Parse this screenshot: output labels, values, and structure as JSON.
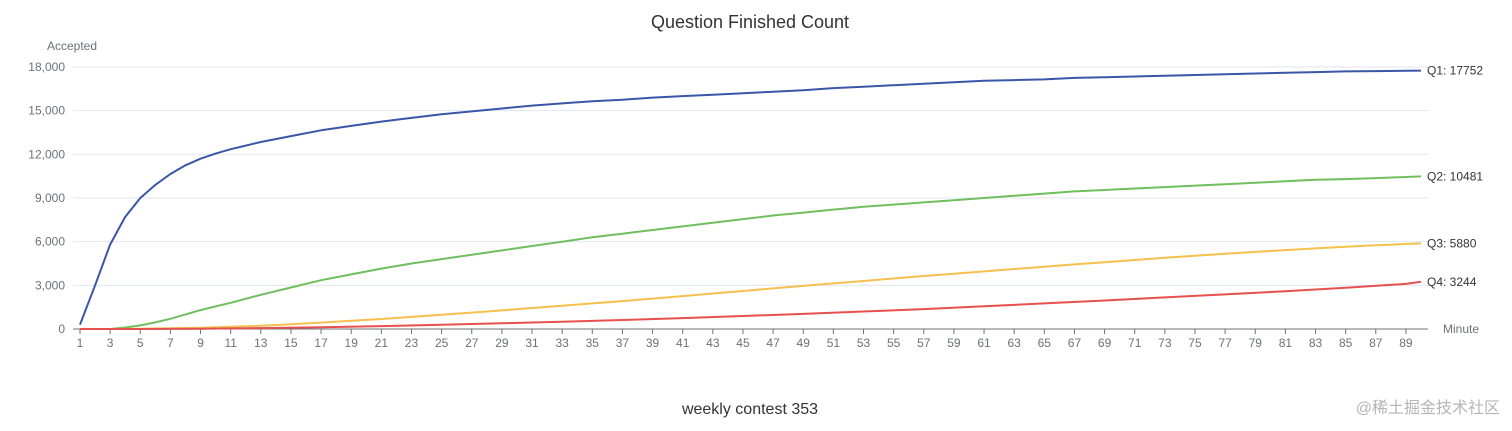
{
  "chart_data": {
    "type": "line",
    "title": "Question Finished Count",
    "subtitle": "weekly contest 353",
    "xlabel": "Minute",
    "ylabel": "Accepted",
    "ylim": [
      0,
      18000
    ],
    "yticks": [
      0,
      3000,
      6000,
      9000,
      12000,
      15000,
      18000
    ],
    "ytick_labels": [
      "0",
      "3,000",
      "6,000",
      "9,000",
      "12,000",
      "15,000",
      "18,000"
    ],
    "xlim": [
      1,
      90
    ],
    "xtick_labels": [
      "1",
      "3",
      "5",
      "7",
      "9",
      "11",
      "13",
      "15",
      "17",
      "19",
      "21",
      "23",
      "25",
      "27",
      "29",
      "31",
      "33",
      "35",
      "37",
      "39",
      "41",
      "43",
      "45",
      "47",
      "49",
      "51",
      "53",
      "55",
      "57",
      "59",
      "61",
      "63",
      "65",
      "67",
      "69",
      "71",
      "73",
      "75",
      "77",
      "79",
      "81",
      "83",
      "85",
      "87",
      "89"
    ],
    "grid": "horizontal",
    "series": [
      {
        "name": "Q1",
        "end_label": "Q1: 17752",
        "color": "#3a56a8",
        "points": [
          [
            1,
            300
          ],
          [
            2,
            3000
          ],
          [
            3,
            5800
          ],
          [
            4,
            7700
          ],
          [
            5,
            9000
          ],
          [
            6,
            9900
          ],
          [
            7,
            10650
          ],
          [
            8,
            11250
          ],
          [
            9,
            11700
          ],
          [
            10,
            12050
          ],
          [
            11,
            12350
          ],
          [
            12,
            12600
          ],
          [
            13,
            12850
          ],
          [
            15,
            13250
          ],
          [
            17,
            13650
          ],
          [
            19,
            13950
          ],
          [
            21,
            14250
          ],
          [
            23,
            14500
          ],
          [
            25,
            14750
          ],
          [
            27,
            14950
          ],
          [
            29,
            15150
          ],
          [
            31,
            15350
          ],
          [
            33,
            15500
          ],
          [
            35,
            15650
          ],
          [
            37,
            15750
          ],
          [
            39,
            15900
          ],
          [
            41,
            16000
          ],
          [
            43,
            16100
          ],
          [
            45,
            16200
          ],
          [
            47,
            16300
          ],
          [
            49,
            16400
          ],
          [
            51,
            16550
          ],
          [
            53,
            16650
          ],
          [
            55,
            16750
          ],
          [
            57,
            16850
          ],
          [
            59,
            16950
          ],
          [
            61,
            17050
          ],
          [
            63,
            17100
          ],
          [
            65,
            17150
          ],
          [
            67,
            17250
          ],
          [
            69,
            17300
          ],
          [
            71,
            17350
          ],
          [
            73,
            17400
          ],
          [
            75,
            17450
          ],
          [
            77,
            17500
          ],
          [
            79,
            17550
          ],
          [
            81,
            17600
          ],
          [
            83,
            17650
          ],
          [
            85,
            17700
          ],
          [
            87,
            17720
          ],
          [
            89,
            17740
          ],
          [
            90,
            17752
          ]
        ]
      },
      {
        "name": "Q2",
        "end_label": "Q2: 10481",
        "color": "#6fbf5f",
        "points": [
          [
            1,
            0
          ],
          [
            2,
            0
          ],
          [
            3,
            0
          ],
          [
            4,
            100
          ],
          [
            5,
            250
          ],
          [
            6,
            450
          ],
          [
            7,
            700
          ],
          [
            8,
            1000
          ],
          [
            9,
            1300
          ],
          [
            10,
            1550
          ],
          [
            11,
            1800
          ],
          [
            13,
            2350
          ],
          [
            15,
            2850
          ],
          [
            17,
            3350
          ],
          [
            19,
            3750
          ],
          [
            21,
            4150
          ],
          [
            23,
            4500
          ],
          [
            25,
            4800
          ],
          [
            27,
            5100
          ],
          [
            29,
            5400
          ],
          [
            31,
            5700
          ],
          [
            33,
            6000
          ],
          [
            35,
            6300
          ],
          [
            37,
            6550
          ],
          [
            39,
            6800
          ],
          [
            41,
            7050
          ],
          [
            43,
            7300
          ],
          [
            45,
            7550
          ],
          [
            47,
            7800
          ],
          [
            49,
            8000
          ],
          [
            51,
            8200
          ],
          [
            53,
            8400
          ],
          [
            55,
            8550
          ],
          [
            57,
            8700
          ],
          [
            59,
            8850
          ],
          [
            61,
            9000
          ],
          [
            63,
            9150
          ],
          [
            65,
            9300
          ],
          [
            67,
            9450
          ],
          [
            69,
            9550
          ],
          [
            71,
            9650
          ],
          [
            73,
            9750
          ],
          [
            75,
            9850
          ],
          [
            77,
            9950
          ],
          [
            79,
            10050
          ],
          [
            81,
            10150
          ],
          [
            83,
            10250
          ],
          [
            85,
            10300
          ],
          [
            87,
            10370
          ],
          [
            89,
            10440
          ],
          [
            90,
            10481
          ]
        ]
      },
      {
        "name": "Q3",
        "end_label": "Q3: 5880",
        "color": "#f5c04e",
        "points": [
          [
            1,
            0
          ],
          [
            3,
            0
          ],
          [
            5,
            20
          ],
          [
            7,
            50
          ],
          [
            9,
            90
          ],
          [
            11,
            150
          ],
          [
            13,
            230
          ],
          [
            15,
            330
          ],
          [
            17,
            440
          ],
          [
            19,
            560
          ],
          [
            21,
            690
          ],
          [
            23,
            830
          ],
          [
            25,
            980
          ],
          [
            27,
            1130
          ],
          [
            29,
            1280
          ],
          [
            31,
            1440
          ],
          [
            33,
            1600
          ],
          [
            35,
            1760
          ],
          [
            37,
            1920
          ],
          [
            39,
            2090
          ],
          [
            41,
            2260
          ],
          [
            43,
            2440
          ],
          [
            45,
            2610
          ],
          [
            47,
            2790
          ],
          [
            49,
            2960
          ],
          [
            51,
            3130
          ],
          [
            53,
            3300
          ],
          [
            55,
            3470
          ],
          [
            57,
            3640
          ],
          [
            59,
            3800
          ],
          [
            61,
            3960
          ],
          [
            63,
            4120
          ],
          [
            65,
            4280
          ],
          [
            67,
            4440
          ],
          [
            69,
            4590
          ],
          [
            71,
            4740
          ],
          [
            73,
            4890
          ],
          [
            75,
            5030
          ],
          [
            77,
            5170
          ],
          [
            79,
            5300
          ],
          [
            81,
            5420
          ],
          [
            83,
            5540
          ],
          [
            85,
            5650
          ],
          [
            87,
            5750
          ],
          [
            89,
            5840
          ],
          [
            90,
            5880
          ]
        ]
      },
      {
        "name": "Q4",
        "end_label": "Q4: 3244",
        "color": "#e5514f",
        "points": [
          [
            1,
            0
          ],
          [
            5,
            0
          ],
          [
            9,
            20
          ],
          [
            13,
            60
          ],
          [
            17,
            120
          ],
          [
            21,
            200
          ],
          [
            25,
            290
          ],
          [
            29,
            390
          ],
          [
            33,
            500
          ],
          [
            37,
            620
          ],
          [
            41,
            750
          ],
          [
            45,
            890
          ],
          [
            49,
            1040
          ],
          [
            53,
            1200
          ],
          [
            57,
            1370
          ],
          [
            61,
            1560
          ],
          [
            65,
            1760
          ],
          [
            69,
            1960
          ],
          [
            73,
            2170
          ],
          [
            77,
            2380
          ],
          [
            81,
            2600
          ],
          [
            85,
            2830
          ],
          [
            89,
            3100
          ],
          [
            90,
            3244
          ]
        ]
      }
    ]
  },
  "footer": {
    "watermark": "@稀土掘金技术社区"
  }
}
